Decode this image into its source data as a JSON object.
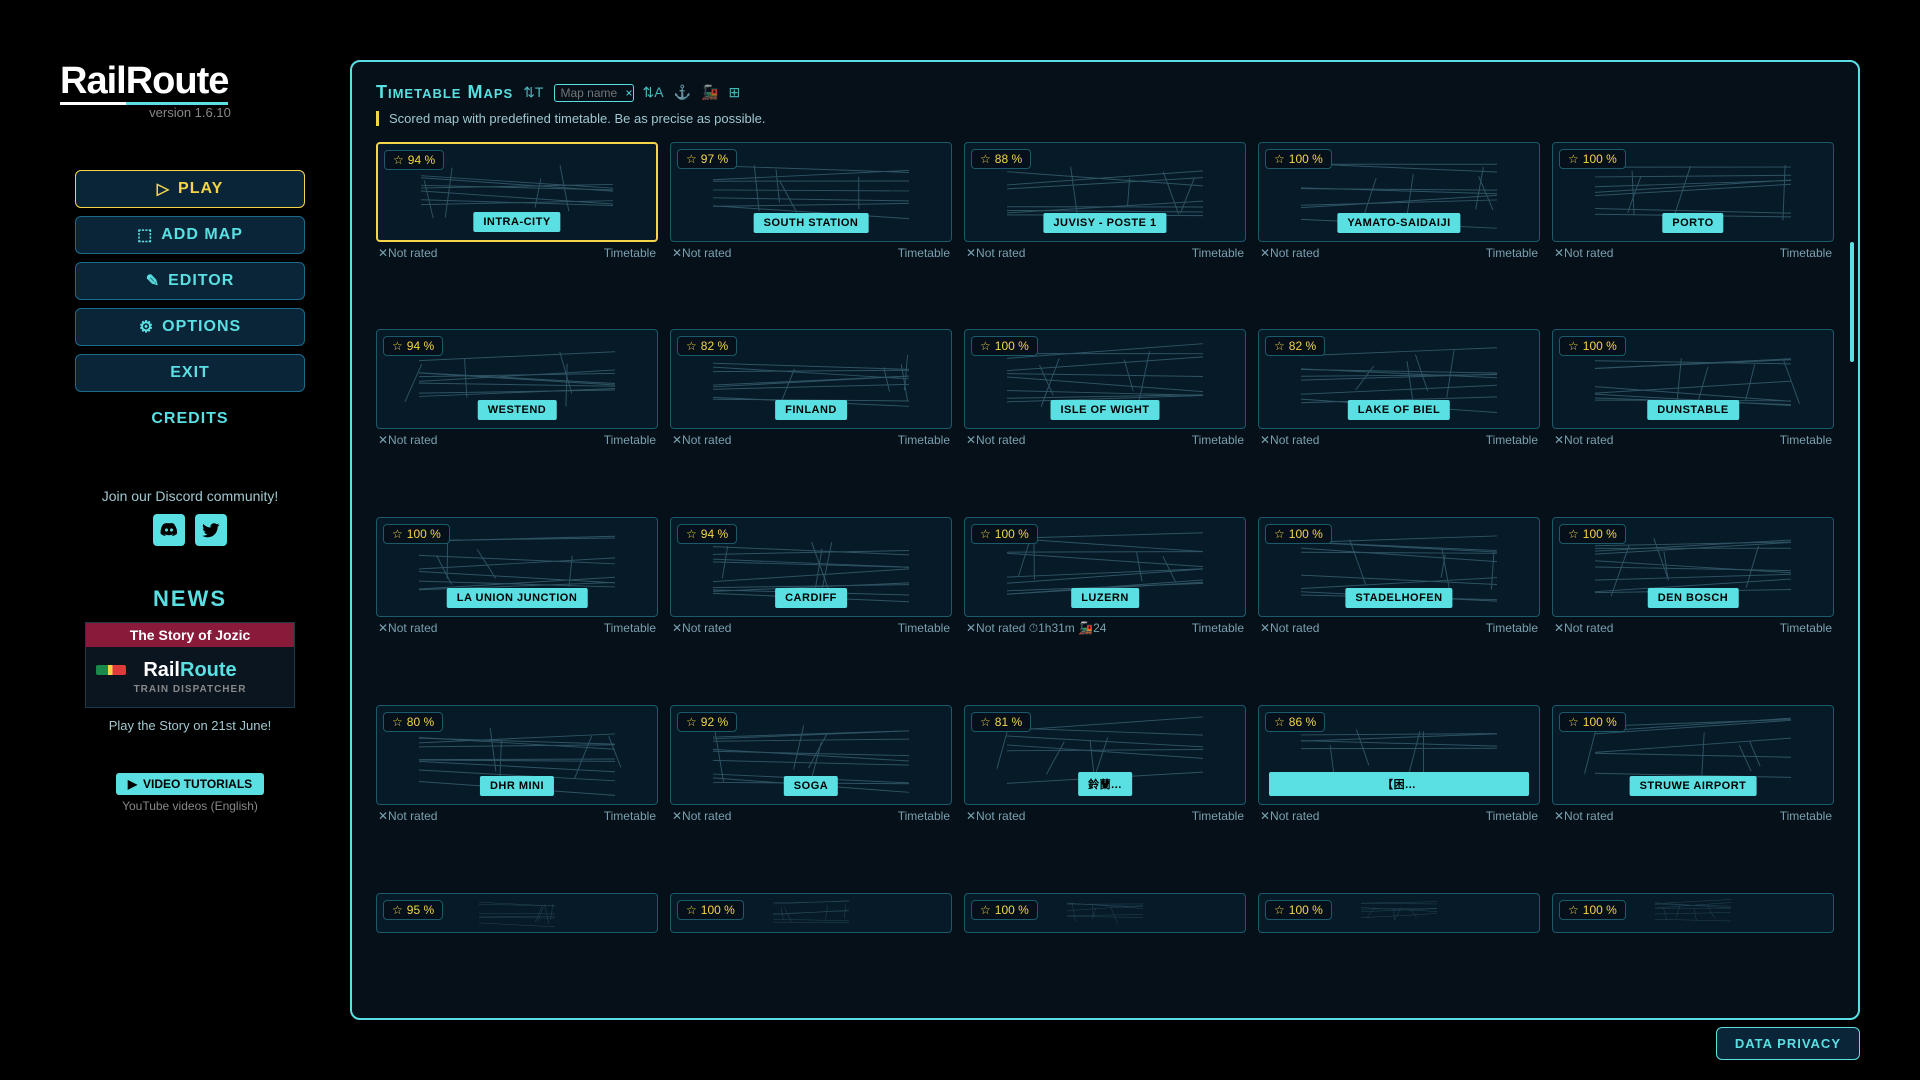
{
  "app": {
    "name_part1": "Rail",
    "name_part2": "Route",
    "version": "version 1.6.10"
  },
  "menu": {
    "play": "PLAY",
    "add_map": "ADD MAP",
    "editor": "EDITOR",
    "options": "OPTIONS",
    "exit": "EXIT",
    "credits": "CREDITS"
  },
  "community": {
    "text": "Join our Discord community!",
    "discord_icon": "discord",
    "twitter_icon": "twitter"
  },
  "news": {
    "title": "NEWS",
    "banner_title": "The Story of Jozic",
    "banner_logo1": "Rail",
    "banner_logo2": "Route",
    "banner_subtitle": "TRAIN DISPATCHER",
    "caption": "Play the Story on 21st June!"
  },
  "tutorials": {
    "button": "VIDEO TUTORIALS",
    "sub": "YouTube videos (English)"
  },
  "panel": {
    "title": "Timetable Maps",
    "search_placeholder": "Map name",
    "description": "Scored map with predefined timetable. Be as precise as possible."
  },
  "meta_labels": {
    "not_rated": "Not rated",
    "timetable": "Timetable"
  },
  "maps": [
    {
      "name": "INTRA-CITY",
      "rating": "94 %",
      "selected": true,
      "extra": ""
    },
    {
      "name": "SOUTH STATION",
      "rating": "97 %",
      "selected": false,
      "extra": ""
    },
    {
      "name": "JUVISY - POSTE 1",
      "rating": "88 %",
      "selected": false,
      "extra": ""
    },
    {
      "name": "YAMATO-SAIDAIJI",
      "rating": "100 %",
      "selected": false,
      "extra": ""
    },
    {
      "name": "PORTO",
      "rating": "100 %",
      "selected": false,
      "extra": ""
    },
    {
      "name": "WESTEND",
      "rating": "94 %",
      "selected": false,
      "extra": ""
    },
    {
      "name": "FINLAND",
      "rating": "82 %",
      "selected": false,
      "extra": ""
    },
    {
      "name": "ISLE OF WIGHT",
      "rating": "100 %",
      "selected": false,
      "extra": ""
    },
    {
      "name": "LAKE OF BIEL",
      "rating": "82 %",
      "selected": false,
      "extra": ""
    },
    {
      "name": "DUNSTABLE",
      "rating": "100 %",
      "selected": false,
      "extra": ""
    },
    {
      "name": "LA UNION JUNCTION",
      "rating": "100 %",
      "selected": false,
      "extra": ""
    },
    {
      "name": "CARDIFF",
      "rating": "94 %",
      "selected": false,
      "extra": ""
    },
    {
      "name": "LUZERN",
      "rating": "100 %",
      "selected": false,
      "extra": "⏱1h31m 🚂24"
    },
    {
      "name": "STADELHOFEN",
      "rating": "100 %",
      "selected": false,
      "extra": ""
    },
    {
      "name": "DEN BOSCH",
      "rating": "100 %",
      "selected": false,
      "extra": ""
    },
    {
      "name": "DHR MINI",
      "rating": "80 %",
      "selected": false,
      "extra": ""
    },
    {
      "name": "SOGA",
      "rating": "92 %",
      "selected": false,
      "extra": ""
    },
    {
      "name": "鈴蘭...",
      "rating": "81 %",
      "selected": false,
      "extra": ""
    },
    {
      "name": "【困...",
      "rating": "86 %",
      "selected": false,
      "extra": "",
      "wide": true
    },
    {
      "name": "STRUWE AIRPORT",
      "rating": "100 %",
      "selected": false,
      "extra": ""
    },
    {
      "name": "",
      "rating": "95 %",
      "selected": false,
      "extra": "",
      "partial": true
    },
    {
      "name": "",
      "rating": "100 %",
      "selected": false,
      "extra": "",
      "partial": true
    },
    {
      "name": "",
      "rating": "100 %",
      "selected": false,
      "extra": "",
      "partial": true
    },
    {
      "name": "",
      "rating": "100 %",
      "selected": false,
      "extra": "",
      "partial": true
    },
    {
      "name": "",
      "rating": "100 %",
      "selected": false,
      "extra": "",
      "partial": true
    }
  ],
  "footer": {
    "privacy": "DATA PRIVACY"
  },
  "colors": {
    "accent": "#5ae0e3",
    "highlight": "#f5d547",
    "bg": "#000000",
    "panel_bg": "#051018",
    "card_bg": "#061a28",
    "card_border": "#1a5a6a"
  }
}
